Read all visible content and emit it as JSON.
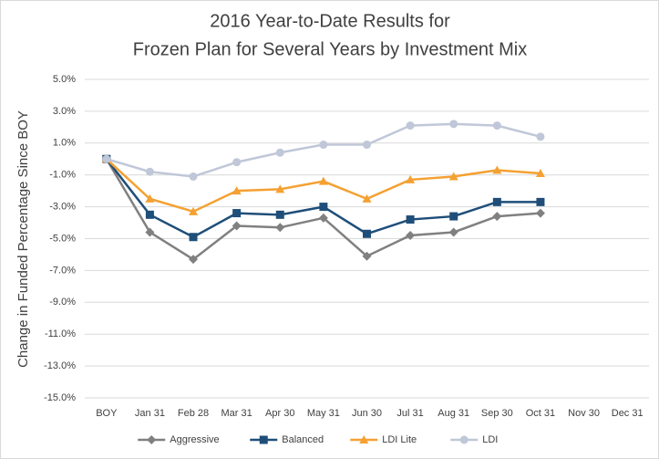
{
  "chart_data": {
    "type": "line",
    "title": [
      "2016 Year-to-Date Results for",
      "Frozen Plan for Several Years by Investment Mix"
    ],
    "y_label": "Change in Funded Percentage Since BOY",
    "categories": [
      "BOY",
      "Jan 31",
      "Feb 28",
      "Mar 31",
      "Apr 30",
      "May 31",
      "Jun 30",
      "Jul 31",
      "Aug 31",
      "Sep 30",
      "Oct 31",
      "Nov 30",
      "Dec 31"
    ],
    "series": [
      {
        "name": "Aggressive",
        "color": "#808080",
        "marker": "diamond",
        "values": [
          0,
          -4.6,
          -6.3,
          -4.2,
          -4.3,
          -3.7,
          -6.1,
          -4.8,
          -4.6,
          -3.6,
          -3.4,
          null,
          null
        ]
      },
      {
        "name": "Balanced",
        "color": "#1f4e79",
        "marker": "square",
        "values": [
          0,
          -3.5,
          -4.9,
          -3.4,
          -3.5,
          -3.0,
          -4.7,
          -3.8,
          -3.6,
          -2.7,
          -2.7,
          null,
          null
        ]
      },
      {
        "name": "LDI Lite",
        "color": "#f4a132",
        "marker": "triangle",
        "values": [
          0,
          -2.5,
          -3.3,
          -2.0,
          -1.9,
          -1.4,
          -2.5,
          -1.3,
          -1.1,
          -0.7,
          -0.9,
          null,
          null
        ]
      },
      {
        "name": "LDI",
        "color": "#c0c7d8",
        "marker": "circle",
        "values": [
          0,
          -0.8,
          -1.1,
          -0.2,
          0.4,
          0.9,
          0.9,
          2.1,
          2.2,
          2.1,
          1.4,
          null,
          null
        ]
      }
    ],
    "ylim": [
      -15,
      5
    ],
    "yticks": [
      {
        "value": 5,
        "label": "5.0%"
      },
      {
        "value": 3,
        "label": "3.0%"
      },
      {
        "value": 1,
        "label": "1.0%"
      },
      {
        "value": -1,
        "label": "-1.0%"
      },
      {
        "value": -3,
        "label": "-3.0%"
      },
      {
        "value": -5,
        "label": "-5.0%"
      },
      {
        "value": -7,
        "label": "-7.0%"
      },
      {
        "value": -9,
        "label": "-9.0%"
      },
      {
        "value": -11,
        "label": "-11.0%"
      },
      {
        "value": -13,
        "label": "-13.0%"
      },
      {
        "value": -15,
        "label": "-15.0%"
      }
    ],
    "grid": true,
    "legend": "bottom"
  }
}
